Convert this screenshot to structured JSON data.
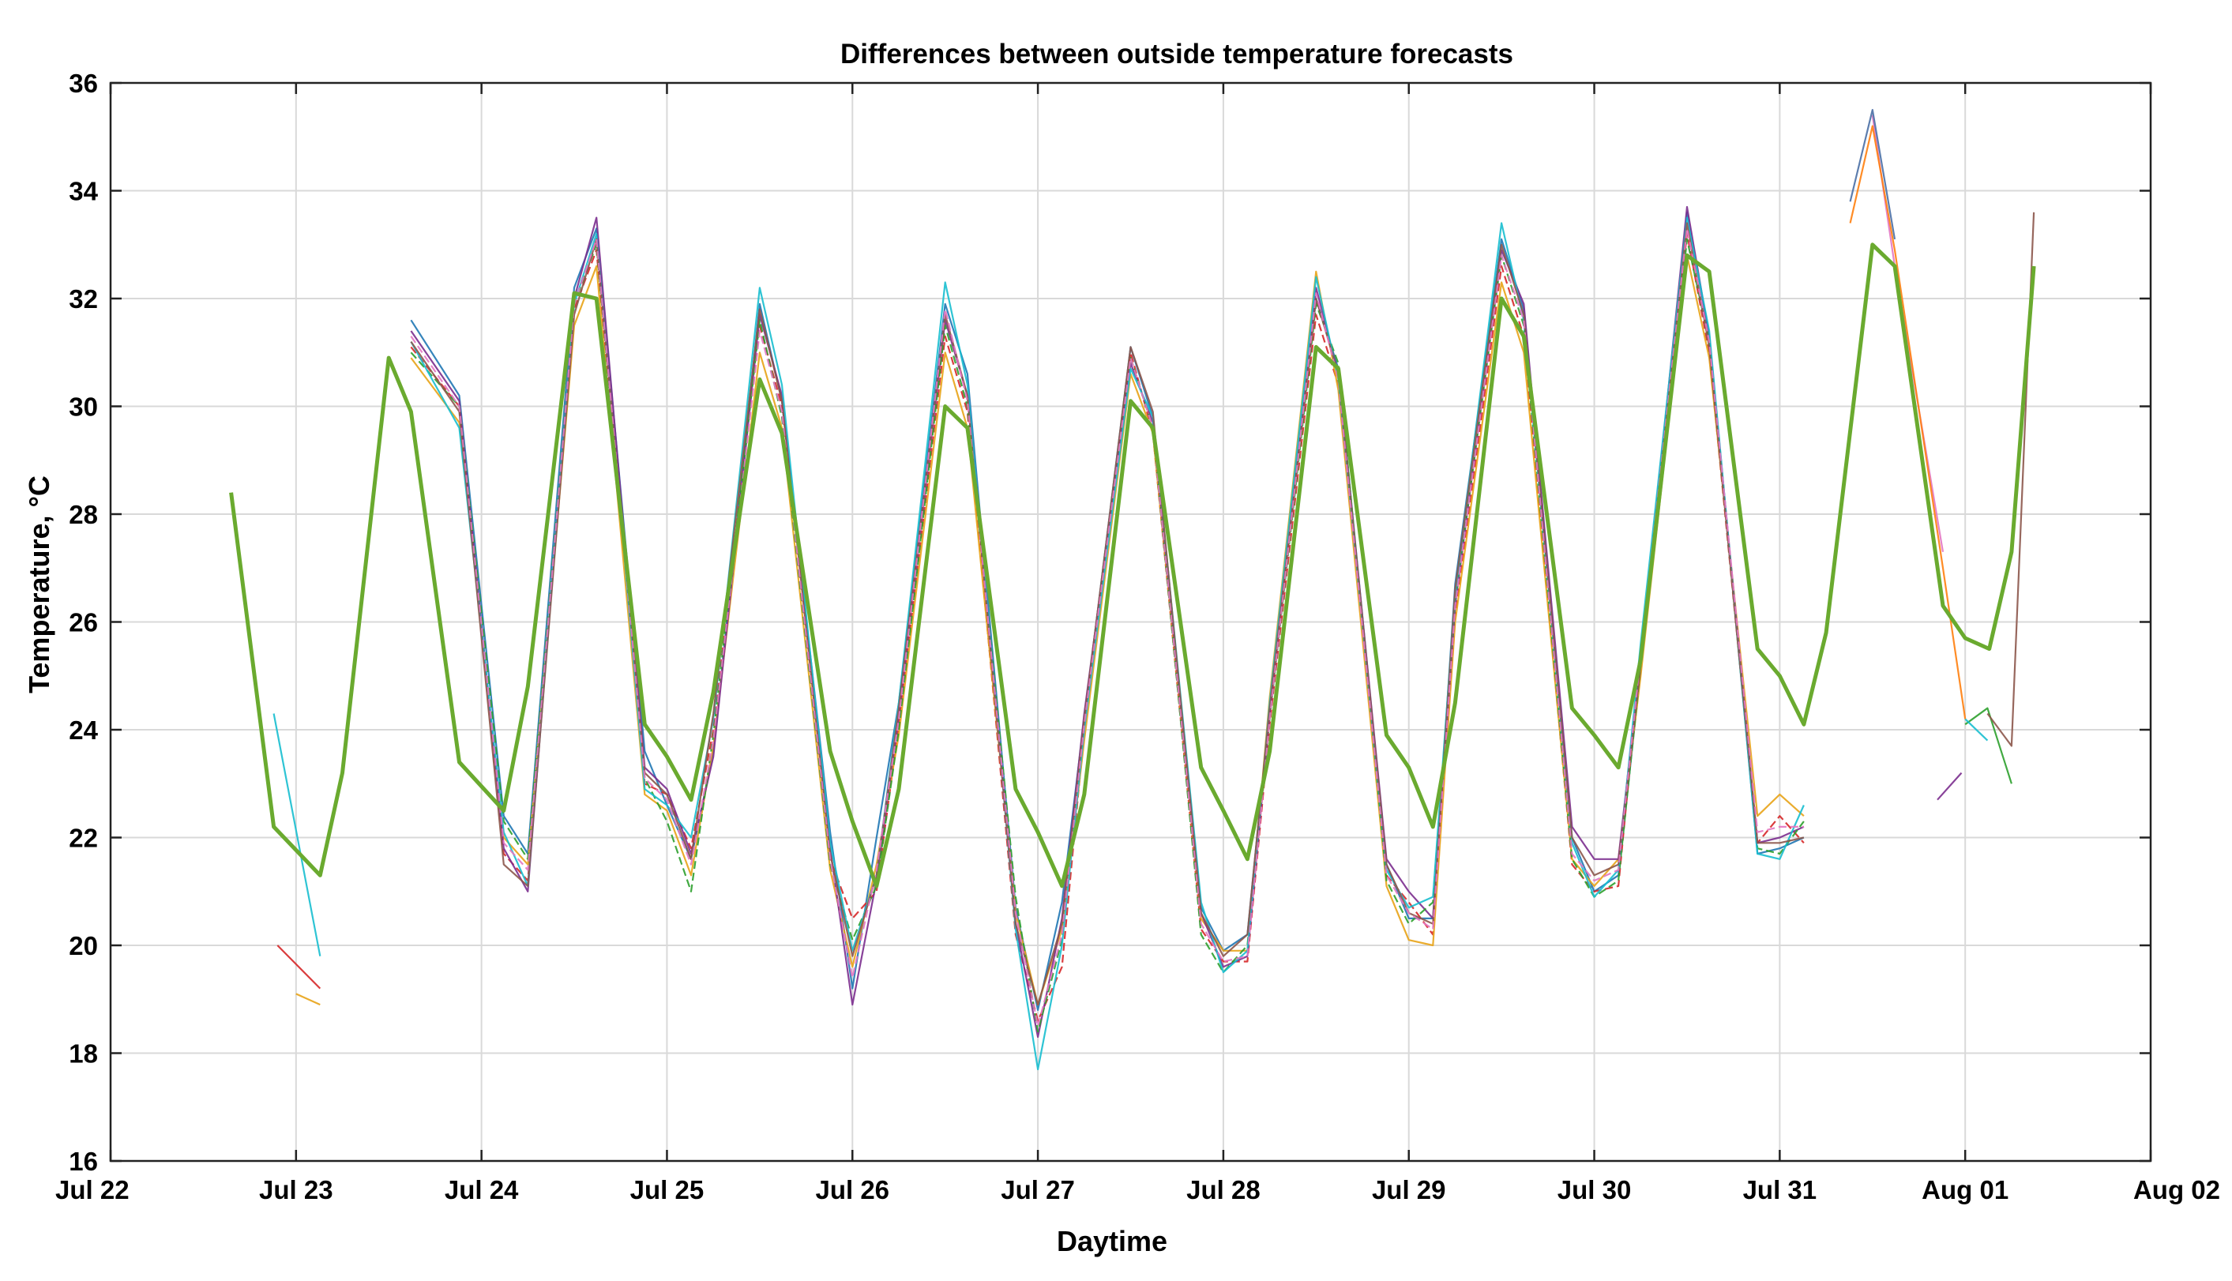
{
  "chart_data": {
    "type": "line",
    "title": "Differences between outside temperature forecasts",
    "xlabel": "Daytime",
    "ylabel": "Temperature, °C",
    "ylim": [
      16,
      36
    ],
    "xlim": [
      "Jul 22",
      "Aug 02"
    ],
    "grid": true,
    "legend": "none",
    "x_ticks": [
      "Jul 22",
      "Jul 23",
      "Jul 24",
      "Jul 25",
      "Jul 26",
      "Jul 27",
      "Jul 28",
      "Jul 29",
      "Jul 30",
      "Jul 31",
      "Aug 01",
      "Aug 02"
    ],
    "y_ticks": [
      16,
      18,
      20,
      22,
      24,
      26,
      28,
      30,
      32,
      34,
      36
    ],
    "observed_color": "#6aaa2f",
    "observed": {
      "x": [
        0.65,
        0.88,
        1.13,
        1.25,
        1.5,
        1.62,
        1.88,
        2.12,
        2.25,
        2.5,
        2.62,
        2.88,
        3.0,
        3.13,
        3.25,
        3.5,
        3.62,
        3.88,
        4.0,
        4.13,
        4.25,
        4.5,
        4.62,
        4.88,
        5.0,
        5.13,
        5.25,
        5.5,
        5.62,
        5.88,
        6.0,
        6.13,
        6.25,
        6.5,
        6.62,
        6.88,
        7.0,
        7.13,
        7.25,
        7.5,
        7.62,
        7.88,
        8.0,
        8.13,
        8.25,
        8.5,
        8.62,
        8.88,
        9.0,
        9.13,
        9.25,
        9.5,
        9.62,
        9.88,
        10.0,
        10.13,
        10.25,
        10.37
      ],
      "y": [
        28.4,
        22.2,
        21.3,
        23.2,
        30.9,
        29.9,
        23.4,
        22.5,
        24.8,
        32.1,
        32.0,
        24.1,
        23.5,
        22.7,
        24.7,
        30.5,
        29.5,
        23.6,
        22.3,
        21.1,
        22.9,
        30.0,
        29.6,
        22.9,
        22.1,
        21.1,
        22.8,
        30.1,
        29.6,
        23.3,
        22.5,
        21.6,
        23.6,
        31.1,
        30.7,
        23.9,
        23.3,
        22.2,
        24.5,
        32.0,
        31.3,
        24.4,
        23.9,
        23.3,
        25.3,
        32.8,
        32.5,
        25.5,
        25.0,
        24.1,
        25.8,
        33.0,
        32.6,
        26.3,
        25.7,
        25.5,
        27.3,
        32.6
      ]
    },
    "forecast_colors": [
      "#1f77b4",
      "#d62728",
      "#e8a317",
      "#7b2d8e",
      "#2ca02c",
      "#17becf",
      "#8c564b",
      "#e377c2",
      "#ff7f0e",
      "#4a6fa5",
      "#a0522d",
      "#9467bd"
    ],
    "series": [
      {
        "values": [
          null,
          null,
          null,
          null,
          null,
          31.6,
          30.2,
          22.4,
          21.7,
          32.2,
          33.3,
          23.6,
          22.6,
          21.6,
          23.6,
          31.9,
          30.1,
          22.1,
          19.2,
          22.0,
          24.5,
          31.9,
          30.6,
          20.7,
          18.8,
          20.8,
          24.2,
          31.1,
          29.8,
          20.7,
          19.9,
          20.2,
          24.4,
          32.0,
          30.7,
          21.5,
          20.5,
          20.5,
          26.7,
          33.1,
          31.8,
          22.0,
          21.0,
          21.3,
          25.1,
          33.6,
          31.3,
          21.7,
          21.8,
          22.0,
          null,
          null,
          null,
          null,
          null,
          null,
          null,
          null
        ]
      },
      {
        "values": [
          null,
          null,
          null,
          null,
          null,
          31.1,
          30.0,
          21.7,
          21.2,
          31.8,
          32.9,
          23.0,
          22.8,
          21.8,
          24.0,
          31.5,
          30.0,
          21.6,
          20.5,
          21.0,
          24.1,
          31.3,
          29.9,
          20.2,
          18.6,
          19.6,
          24.0,
          31.0,
          29.5,
          20.3,
          19.7,
          19.7,
          24.1,
          31.7,
          30.4,
          21.3,
          20.8,
          20.2,
          26.1,
          32.6,
          31.3,
          21.5,
          21.0,
          21.1,
          25.4,
          33.2,
          31.0,
          21.9,
          22.4,
          21.9,
          null,
          null,
          null,
          null,
          null,
          null,
          null,
          null
        ]
      },
      {
        "values": [
          null,
          null,
          null,
          null,
          null,
          30.9,
          29.7,
          22.0,
          21.5,
          31.5,
          32.6,
          22.8,
          22.5,
          21.3,
          23.7,
          31.0,
          29.6,
          21.4,
          19.6,
          21.5,
          23.9,
          31.0,
          29.6,
          20.6,
          18.9,
          20.3,
          23.8,
          30.6,
          29.5,
          20.5,
          19.9,
          19.9,
          24.6,
          32.5,
          30.3,
          21.1,
          20.1,
          20.0,
          26.0,
          32.3,
          31.0,
          21.6,
          21.1,
          21.6,
          25.0,
          32.8,
          30.9,
          22.4,
          22.8,
          22.4,
          null,
          null,
          null,
          null,
          null,
          null,
          null,
          null
        ]
      },
      {
        "values": [
          null,
          null,
          null,
          null,
          null,
          31.4,
          30.1,
          21.8,
          21.0,
          32.0,
          33.5,
          23.3,
          22.9,
          21.7,
          23.5,
          31.7,
          30.2,
          21.8,
          18.9,
          21.2,
          24.3,
          31.6,
          30.2,
          20.4,
          18.3,
          20.5,
          24.3,
          30.8,
          29.7,
          20.6,
          19.6,
          19.8,
          24.3,
          32.2,
          30.6,
          21.6,
          21.0,
          20.5,
          26.3,
          32.9,
          31.9,
          22.2,
          21.6,
          21.6,
          25.3,
          33.7,
          31.3,
          21.9,
          22.0,
          22.2,
          null,
          null,
          null,
          null,
          null,
          null,
          null,
          null
        ]
      },
      {
        "values": [
          null,
          null,
          null,
          null,
          null,
          31.0,
          30.0,
          22.3,
          21.6,
          31.9,
          33.0,
          23.1,
          22.3,
          21.0,
          23.9,
          31.6,
          29.8,
          21.5,
          20.1,
          21.1,
          24.0,
          31.5,
          30.0,
          20.9,
          18.4,
          20.1,
          24.1,
          30.9,
          29.6,
          20.2,
          19.5,
          20.0,
          24.2,
          31.9,
          30.8,
          21.2,
          20.4,
          20.8,
          26.4,
          32.8,
          31.5,
          21.6,
          20.9,
          21.2,
          25.2,
          33.1,
          31.2,
          21.8,
          21.7,
          22.3,
          null,
          null,
          null,
          null,
          null,
          null,
          null,
          null
        ]
      },
      {
        "values": [
          null,
          24.3,
          19.8,
          null,
          null,
          31.2,
          29.6,
          22.1,
          21.1,
          31.9,
          33.2,
          22.9,
          22.6,
          22.0,
          24.2,
          32.2,
          30.4,
          21.9,
          19.9,
          21.3,
          24.5,
          32.3,
          30.4,
          20.3,
          17.7,
          20.0,
          24.0,
          30.7,
          29.8,
          20.8,
          19.5,
          19.9,
          24.5,
          32.4,
          30.5,
          21.4,
          20.7,
          20.9,
          26.5,
          33.4,
          31.6,
          21.9,
          20.9,
          21.4,
          25.6,
          33.5,
          31.4,
          21.7,
          21.6,
          22.6,
          null,
          null,
          null,
          null,
          null,
          null,
          null,
          null
        ]
      },
      {
        "values": [
          null,
          null,
          null,
          null,
          null,
          31.2,
          29.9,
          21.5,
          21.1,
          31.7,
          33.1,
          23.2,
          22.8,
          21.6,
          24.3,
          31.8,
          30.1,
          21.7,
          19.8,
          21.3,
          24.4,
          31.7,
          30.2,
          20.4,
          18.9,
          20.4,
          24.2,
          31.1,
          29.9,
          20.6,
          19.8,
          20.2,
          24.4,
          32.0,
          30.6,
          21.5,
          20.6,
          20.4,
          26.6,
          33.0,
          31.7,
          22.0,
          21.3,
          21.5,
          25.2,
          33.4,
          31.1,
          21.9,
          21.9,
          22.0,
          null,
          null,
          null,
          null,
          null,
          null,
          null,
          null
        ]
      },
      {
        "values": [
          null,
          null,
          null,
          null,
          null,
          31.3,
          30.0,
          21.9,
          21.4,
          31.9,
          33.1,
          23.1,
          22.7,
          21.5,
          23.8,
          31.4,
          29.9,
          21.6,
          19.4,
          21.4,
          24.2,
          31.8,
          30.1,
          20.6,
          18.5,
          20.2,
          24.1,
          30.9,
          29.6,
          20.4,
          19.7,
          19.8,
          24.2,
          32.1,
          30.5,
          21.3,
          20.6,
          20.3,
          26.3,
          32.8,
          31.6,
          21.7,
          21.2,
          21.4,
          25.4,
          33.3,
          31.2,
          22.1,
          22.2,
          22.2,
          null,
          null,
          null,
          null,
          null,
          null,
          null,
          null
        ]
      }
    ],
    "extra_segments": [
      {
        "x": [
          0.9,
          1.13
        ],
        "y": [
          20.0,
          19.2
        ]
      },
      {
        "x": [
          1.0,
          1.13
        ],
        "y": [
          19.1,
          18.9
        ]
      },
      {
        "x": [
          9.85,
          9.98
        ],
        "y": [
          22.7,
          23.2
        ]
      },
      {
        "x": [
          10.0,
          10.12,
          10.25
        ],
        "y": [
          24.1,
          24.4,
          23.0
        ]
      },
      {
        "x": [
          10.0,
          10.12
        ],
        "y": [
          24.2,
          23.8
        ]
      },
      {
        "x": [
          10.12,
          10.25,
          10.37
        ],
        "y": [
          24.3,
          23.7,
          33.6
        ]
      },
      {
        "x": [
          9.5,
          9.62,
          9.88
        ],
        "y": [
          35.4,
          32.6,
          27.3
        ]
      },
      {
        "x": [
          9.38,
          9.5,
          9.62,
          9.88,
          10.0
        ],
        "y": [
          33.4,
          35.2,
          32.9,
          27.0,
          24.2
        ]
      },
      {
        "x": [
          9.38,
          9.5,
          9.62
        ],
        "y": [
          33.8,
          35.5,
          33.1
        ]
      }
    ]
  }
}
